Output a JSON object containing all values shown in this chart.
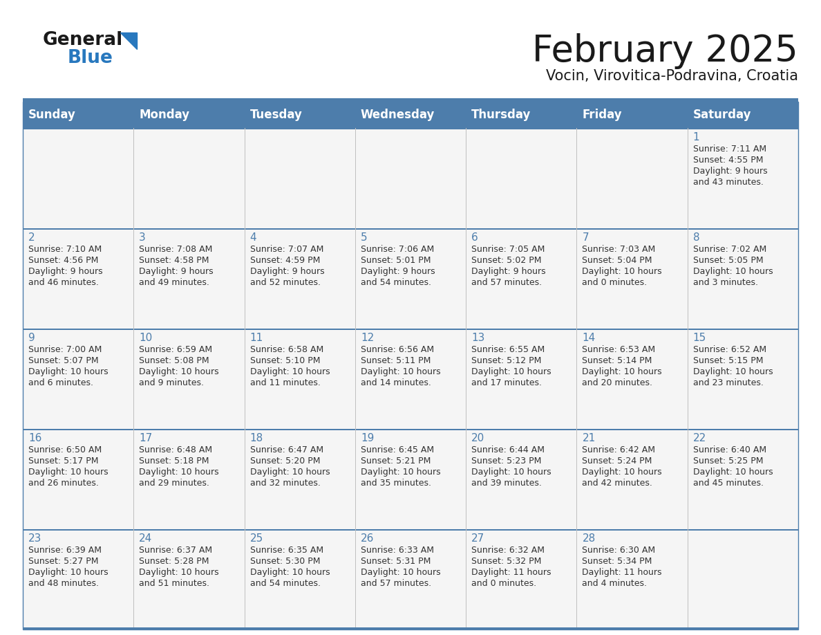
{
  "title": "February 2025",
  "subtitle": "Vocin, Virovitica-Podravina, Croatia",
  "days_of_week": [
    "Sunday",
    "Monday",
    "Tuesday",
    "Wednesday",
    "Thursday",
    "Friday",
    "Saturday"
  ],
  "header_bg": "#4d7dab",
  "header_text": "#ffffff",
  "cell_bg": "#f5f5f5",
  "cell_text": "#333333",
  "day_number_color": "#4d7dab",
  "separator_color": "#4d7dab",
  "title_color": "#1a1a1a",
  "subtitle_color": "#1a1a1a",
  "logo_general_color": "#1a1a1a",
  "logo_blue_color": "#2878be",
  "calendar_data": [
    [
      null,
      null,
      null,
      null,
      null,
      null,
      {
        "day": 1,
        "sunrise": "7:11 AM",
        "sunset": "4:55 PM",
        "daylight": "9 hours\nand 43 minutes."
      }
    ],
    [
      {
        "day": 2,
        "sunrise": "7:10 AM",
        "sunset": "4:56 PM",
        "daylight": "9 hours\nand 46 minutes."
      },
      {
        "day": 3,
        "sunrise": "7:08 AM",
        "sunset": "4:58 PM",
        "daylight": "9 hours\nand 49 minutes."
      },
      {
        "day": 4,
        "sunrise": "7:07 AM",
        "sunset": "4:59 PM",
        "daylight": "9 hours\nand 52 minutes."
      },
      {
        "day": 5,
        "sunrise": "7:06 AM",
        "sunset": "5:01 PM",
        "daylight": "9 hours\nand 54 minutes."
      },
      {
        "day": 6,
        "sunrise": "7:05 AM",
        "sunset": "5:02 PM",
        "daylight": "9 hours\nand 57 minutes."
      },
      {
        "day": 7,
        "sunrise": "7:03 AM",
        "sunset": "5:04 PM",
        "daylight": "10 hours\nand 0 minutes."
      },
      {
        "day": 8,
        "sunrise": "7:02 AM",
        "sunset": "5:05 PM",
        "daylight": "10 hours\nand 3 minutes."
      }
    ],
    [
      {
        "day": 9,
        "sunrise": "7:00 AM",
        "sunset": "5:07 PM",
        "daylight": "10 hours\nand 6 minutes."
      },
      {
        "day": 10,
        "sunrise": "6:59 AM",
        "sunset": "5:08 PM",
        "daylight": "10 hours\nand 9 minutes."
      },
      {
        "day": 11,
        "sunrise": "6:58 AM",
        "sunset": "5:10 PM",
        "daylight": "10 hours\nand 11 minutes."
      },
      {
        "day": 12,
        "sunrise": "6:56 AM",
        "sunset": "5:11 PM",
        "daylight": "10 hours\nand 14 minutes."
      },
      {
        "day": 13,
        "sunrise": "6:55 AM",
        "sunset": "5:12 PM",
        "daylight": "10 hours\nand 17 minutes."
      },
      {
        "day": 14,
        "sunrise": "6:53 AM",
        "sunset": "5:14 PM",
        "daylight": "10 hours\nand 20 minutes."
      },
      {
        "day": 15,
        "sunrise": "6:52 AM",
        "sunset": "5:15 PM",
        "daylight": "10 hours\nand 23 minutes."
      }
    ],
    [
      {
        "day": 16,
        "sunrise": "6:50 AM",
        "sunset": "5:17 PM",
        "daylight": "10 hours\nand 26 minutes."
      },
      {
        "day": 17,
        "sunrise": "6:48 AM",
        "sunset": "5:18 PM",
        "daylight": "10 hours\nand 29 minutes."
      },
      {
        "day": 18,
        "sunrise": "6:47 AM",
        "sunset": "5:20 PM",
        "daylight": "10 hours\nand 32 minutes."
      },
      {
        "day": 19,
        "sunrise": "6:45 AM",
        "sunset": "5:21 PM",
        "daylight": "10 hours\nand 35 minutes."
      },
      {
        "day": 20,
        "sunrise": "6:44 AM",
        "sunset": "5:23 PM",
        "daylight": "10 hours\nand 39 minutes."
      },
      {
        "day": 21,
        "sunrise": "6:42 AM",
        "sunset": "5:24 PM",
        "daylight": "10 hours\nand 42 minutes."
      },
      {
        "day": 22,
        "sunrise": "6:40 AM",
        "sunset": "5:25 PM",
        "daylight": "10 hours\nand 45 minutes."
      }
    ],
    [
      {
        "day": 23,
        "sunrise": "6:39 AM",
        "sunset": "5:27 PM",
        "daylight": "10 hours\nand 48 minutes."
      },
      {
        "day": 24,
        "sunrise": "6:37 AM",
        "sunset": "5:28 PM",
        "daylight": "10 hours\nand 51 minutes."
      },
      {
        "day": 25,
        "sunrise": "6:35 AM",
        "sunset": "5:30 PM",
        "daylight": "10 hours\nand 54 minutes."
      },
      {
        "day": 26,
        "sunrise": "6:33 AM",
        "sunset": "5:31 PM",
        "daylight": "10 hours\nand 57 minutes."
      },
      {
        "day": 27,
        "sunrise": "6:32 AM",
        "sunset": "5:32 PM",
        "daylight": "11 hours\nand 0 minutes."
      },
      {
        "day": 28,
        "sunrise": "6:30 AM",
        "sunset": "5:34 PM",
        "daylight": "11 hours\nand 4 minutes."
      },
      null
    ]
  ]
}
